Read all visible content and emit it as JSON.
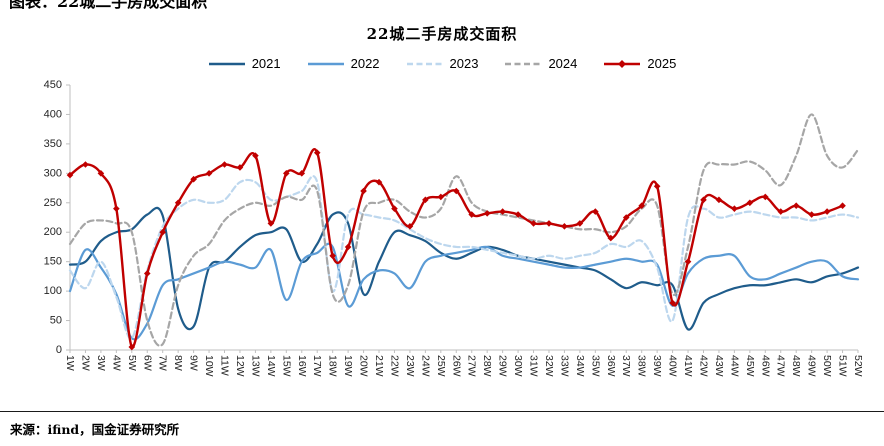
{
  "header": {
    "cropped_title": "图表：22城二手房成交面积"
  },
  "chart": {
    "title": "22城二手房成交面积"
  },
  "chart_data": {
    "type": "line",
    "title": "22城二手房成交面积",
    "xlabel": "",
    "ylabel": "",
    "ylim": [
      0,
      450
    ],
    "ytick_interval": 50,
    "grid": false,
    "legend_position": "top",
    "x": [
      "1W",
      "2W",
      "3W",
      "4W",
      "5W",
      "6W",
      "7W",
      "8W",
      "9W",
      "10W",
      "11W",
      "12W",
      "13W",
      "14W",
      "15W",
      "16W",
      "17W",
      "18W",
      "19W",
      "20W",
      "21W",
      "22W",
      "23W",
      "24W",
      "25W",
      "26W",
      "27W",
      "28W",
      "29W",
      "30W",
      "31W",
      "32W",
      "33W",
      "34W",
      "35W",
      "36W",
      "37W",
      "38W",
      "39W",
      "40W",
      "41W",
      "42W",
      "43W",
      "44W",
      "45W",
      "46W",
      "47W",
      "48W",
      "49W",
      "50W",
      "51W",
      "52W"
    ],
    "series": [
      {
        "name": "2021",
        "color": "#1f5c8b",
        "style": "solid",
        "marker": "none",
        "values": [
          145,
          150,
          185,
          200,
          205,
          230,
          228,
          70,
          40,
          140,
          150,
          175,
          195,
          200,
          205,
          150,
          180,
          230,
          215,
          95,
          150,
          200,
          195,
          185,
          165,
          155,
          165,
          175,
          170,
          160,
          155,
          150,
          145,
          140,
          135,
          120,
          105,
          115,
          110,
          110,
          35,
          80,
          95,
          105,
          110,
          110,
          115,
          120,
          115,
          125,
          130,
          140
        ]
      },
      {
        "name": "2022",
        "color": "#5b9bd5",
        "style": "solid",
        "marker": "none",
        "values": [
          100,
          170,
          140,
          95,
          20,
          45,
          110,
          120,
          130,
          140,
          150,
          145,
          140,
          170,
          85,
          150,
          165,
          175,
          75,
          120,
          135,
          130,
          105,
          150,
          160,
          165,
          170,
          175,
          160,
          155,
          150,
          145,
          140,
          140,
          145,
          150,
          155,
          150,
          145,
          75,
          130,
          155,
          160,
          160,
          125,
          120,
          130,
          140,
          150,
          150,
          125,
          120
        ]
      },
      {
        "name": "2023",
        "color": "#bdd7ee",
        "style": "dashed",
        "marker": "none",
        "values": [
          135,
          105,
          150,
          90,
          20,
          135,
          210,
          240,
          255,
          250,
          255,
          285,
          285,
          255,
          260,
          270,
          285,
          100,
          230,
          230,
          225,
          220,
          205,
          190,
          180,
          175,
          175,
          170,
          165,
          160,
          155,
          160,
          155,
          160,
          165,
          180,
          175,
          185,
          140,
          50,
          225,
          240,
          225,
          230,
          235,
          230,
          225,
          225,
          220,
          225,
          230,
          225
        ]
      },
      {
        "name": "2024",
        "color": "#a6a6a6",
        "style": "dashed",
        "marker": "none",
        "values": [
          180,
          215,
          220,
          215,
          200,
          50,
          10,
          110,
          160,
          180,
          220,
          240,
          250,
          245,
          260,
          255,
          270,
          95,
          110,
          235,
          250,
          255,
          235,
          225,
          240,
          295,
          250,
          235,
          230,
          225,
          220,
          215,
          210,
          205,
          205,
          200,
          210,
          240,
          245,
          95,
          175,
          305,
          315,
          315,
          320,
          305,
          280,
          330,
          400,
          330,
          310,
          340
        ]
      },
      {
        "name": "2025",
        "color": "#c00000",
        "style": "solid",
        "marker": "diamond",
        "values": [
          297,
          315,
          300,
          240,
          5,
          130,
          200,
          250,
          290,
          300,
          315,
          310,
          330,
          215,
          300,
          300,
          335,
          160,
          175,
          270,
          285,
          240,
          210,
          255,
          260,
          270,
          230,
          232,
          235,
          230,
          215,
          215,
          210,
          215,
          235,
          190,
          225,
          245,
          278,
          80,
          150,
          255,
          255,
          240,
          250,
          260,
          235,
          245,
          230,
          235,
          245
        ]
      }
    ]
  },
  "footer": {
    "source": "来源：ifind，国金证券研究所"
  }
}
